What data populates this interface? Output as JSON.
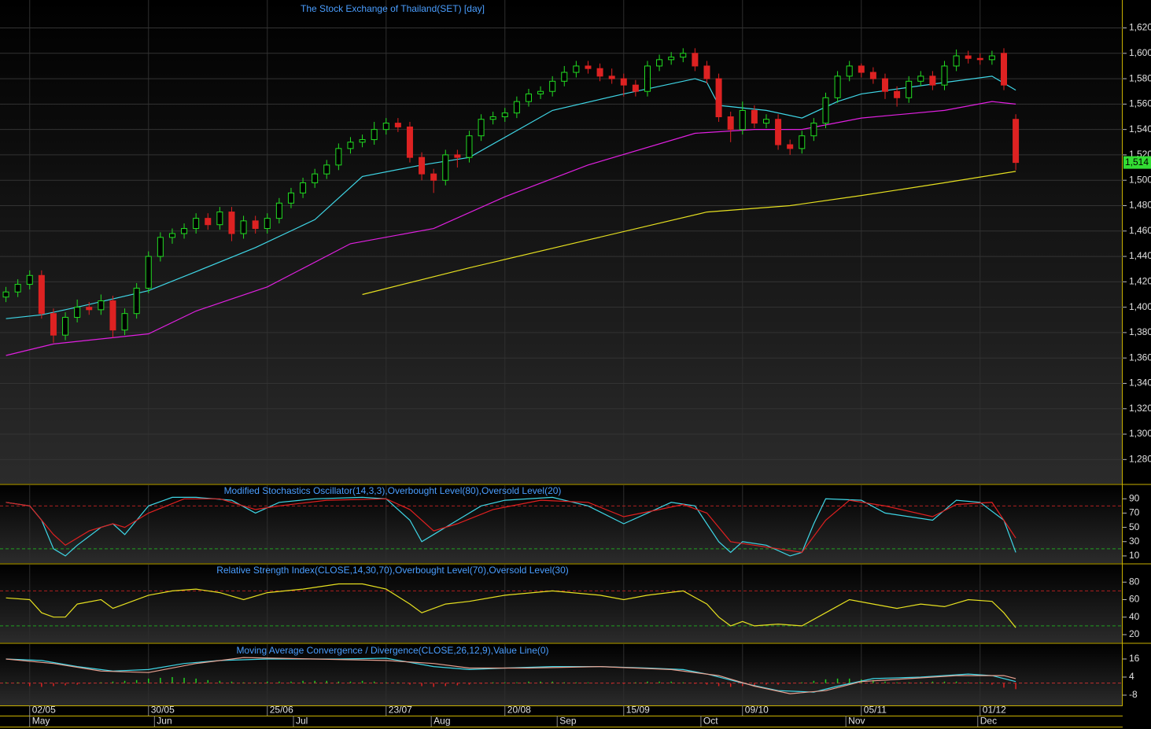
{
  "chart_data": [
    {
      "type": "candlestick",
      "title": "The Stock Exchange of Thailand(SET) [day]",
      "up_color": "#22dd22",
      "down_color": "#dd2222",
      "grid": true,
      "xlim": [
        -0.5,
        94
      ],
      "xticks": [
        {
          "value": 2,
          "label": "02/05"
        },
        {
          "value": 12,
          "label": "30/05"
        },
        {
          "value": 22,
          "label": "25/06"
        },
        {
          "value": 32,
          "label": "23/07"
        },
        {
          "value": 42,
          "label": "20/08"
        },
        {
          "value": 52,
          "label": "15/09"
        },
        {
          "value": 62,
          "label": "09/10"
        },
        {
          "value": 72,
          "label": "05/11"
        },
        {
          "value": 82,
          "label": "01/12"
        }
      ],
      "month_ticks": [
        {
          "value": 2,
          "label": "May"
        },
        {
          "value": 12.5,
          "label": "Jun"
        },
        {
          "value": 24.2,
          "label": "Jul"
        },
        {
          "value": 35.8,
          "label": "Aug"
        },
        {
          "value": 46.4,
          "label": "Sep"
        },
        {
          "value": 58.5,
          "label": "Oct"
        },
        {
          "value": 70.7,
          "label": "Nov"
        },
        {
          "value": 81.8,
          "label": "Dec"
        }
      ],
      "ylim": [
        1261,
        1642
      ],
      "yticks": [
        {
          "value": 1280,
          "label": "1,280"
        },
        {
          "value": 1300,
          "label": "1,300"
        },
        {
          "value": 1320,
          "label": "1,320"
        },
        {
          "value": 1340,
          "label": "1,340"
        },
        {
          "value": 1360,
          "label": "1,360"
        },
        {
          "value": 1380,
          "label": "1,380"
        },
        {
          "value": 1400,
          "label": "1,400"
        },
        {
          "value": 1420,
          "label": "1,420"
        },
        {
          "value": 1440,
          "label": "1,440"
        },
        {
          "value": 1460,
          "label": "1,460"
        },
        {
          "value": 1480,
          "label": "1,480"
        },
        {
          "value": 1500,
          "label": "1,500"
        },
        {
          "value": 1520,
          "label": "1,520"
        },
        {
          "value": 1540,
          "label": "1,540"
        },
        {
          "value": 1560,
          "label": "1,560"
        },
        {
          "value": 1580,
          "label": "1,580"
        },
        {
          "value": 1600,
          "label": "1,600"
        },
        {
          "value": 1620,
          "label": "1,620"
        }
      ],
      "last_price": {
        "value": 1514,
        "label": "1,514"
      },
      "open": [
        1408,
        1412,
        1418,
        1425,
        1395,
        1378,
        1392,
        1400,
        1398,
        1405,
        1382,
        1395,
        1415,
        1440,
        1455,
        1458,
        1462,
        1470,
        1465,
        1475,
        1458,
        1468,
        1462,
        1470,
        1482,
        1490,
        1498,
        1505,
        1512,
        1525,
        1530,
        1532,
        1540,
        1545,
        1542,
        1518,
        1505,
        1500,
        1520,
        1518,
        1535,
        1548,
        1550,
        1553,
        1562,
        1568,
        1570,
        1578,
        1585,
        1590,
        1588,
        1582,
        1580,
        1575,
        1570,
        1590,
        1595,
        1597,
        1600,
        1590,
        1580,
        1550,
        1540,
        1555,
        1545,
        1548,
        1528,
        1525,
        1535,
        1545,
        1565,
        1582,
        1590,
        1585,
        1580,
        1570,
        1565,
        1578,
        1582,
        1575,
        1590,
        1598,
        1596,
        1595,
        1600,
        1548
      ],
      "high": [
        1416,
        1422,
        1429,
        1429,
        1399,
        1396,
        1406,
        1404,
        1410,
        1409,
        1399,
        1419,
        1444,
        1459,
        1462,
        1466,
        1474,
        1474,
        1479,
        1479,
        1472,
        1472,
        1474,
        1486,
        1494,
        1502,
        1509,
        1516,
        1529,
        1534,
        1536,
        1546,
        1549,
        1549,
        1546,
        1522,
        1509,
        1524,
        1524,
        1539,
        1552,
        1554,
        1557,
        1566,
        1572,
        1574,
        1582,
        1590,
        1594,
        1594,
        1592,
        1588,
        1584,
        1579,
        1594,
        1599,
        1601,
        1604,
        1604,
        1594,
        1584,
        1554,
        1562,
        1559,
        1552,
        1552,
        1532,
        1539,
        1549,
        1569,
        1586,
        1594,
        1592,
        1589,
        1584,
        1574,
        1582,
        1586,
        1586,
        1594,
        1603,
        1602,
        1600,
        1602,
        1604,
        1552
      ],
      "low": [
        1404,
        1408,
        1414,
        1391,
        1372,
        1374,
        1388,
        1394,
        1394,
        1376,
        1378,
        1391,
        1411,
        1436,
        1450,
        1454,
        1458,
        1461,
        1461,
        1452,
        1454,
        1458,
        1458,
        1466,
        1478,
        1486,
        1494,
        1501,
        1508,
        1521,
        1526,
        1528,
        1536,
        1538,
        1514,
        1500,
        1490,
        1496,
        1510,
        1514,
        1531,
        1544,
        1546,
        1549,
        1558,
        1564,
        1566,
        1574,
        1581,
        1584,
        1578,
        1576,
        1566,
        1566,
        1566,
        1586,
        1591,
        1593,
        1586,
        1576,
        1546,
        1530,
        1536,
        1541,
        1541,
        1524,
        1520,
        1521,
        1531,
        1541,
        1561,
        1578,
        1581,
        1576,
        1564,
        1558,
        1561,
        1574,
        1571,
        1571,
        1586,
        1592,
        1591,
        1591,
        1571,
        1508
      ],
      "close": [
        1412,
        1418,
        1425,
        1395,
        1378,
        1392,
        1400,
        1398,
        1405,
        1382,
        1395,
        1415,
        1440,
        1455,
        1458,
        1462,
        1470,
        1465,
        1475,
        1458,
        1468,
        1462,
        1470,
        1482,
        1490,
        1498,
        1505,
        1512,
        1525,
        1530,
        1532,
        1540,
        1545,
        1542,
        1518,
        1505,
        1500,
        1520,
        1518,
        1535,
        1548,
        1550,
        1553,
        1562,
        1568,
        1570,
        1578,
        1585,
        1590,
        1588,
        1582,
        1580,
        1575,
        1570,
        1590,
        1595,
        1597,
        1600,
        1590,
        1580,
        1550,
        1540,
        1555,
        1545,
        1548,
        1528,
        1525,
        1535,
        1545,
        1565,
        1582,
        1590,
        1585,
        1580,
        1570,
        1565,
        1578,
        1582,
        1575,
        1590,
        1598,
        1596,
        1595,
        1598,
        1575,
        1514
      ],
      "lines": [
        {
          "color": "#3fd6e6",
          "x": [
            0,
            3,
            6,
            12,
            16,
            21,
            26,
            30,
            35,
            39,
            46,
            52,
            58,
            59,
            60,
            64,
            67,
            70,
            72,
            79,
            83,
            85
          ],
          "values": [
            1391,
            1394,
            1400,
            1413,
            1428,
            1447,
            1469,
            1503,
            1512,
            1518,
            1555,
            1568,
            1580,
            1577,
            1559,
            1555,
            1549,
            1562,
            1568,
            1577,
            1582,
            1571
          ]
        },
        {
          "color": "#e020e0",
          "x": [
            0,
            4,
            12,
            16,
            22,
            29,
            36,
            42,
            49,
            58,
            63,
            67,
            72,
            79,
            83,
            85
          ],
          "values": [
            1362,
            1371,
            1379,
            1397,
            1416,
            1450,
            1462,
            1487,
            1512,
            1537,
            1540,
            1540,
            1549,
            1555,
            1562,
            1560
          ]
        },
        {
          "color": "#e6e020",
          "x": [
            30,
            39,
            49,
            59,
            66,
            72,
            79,
            85
          ],
          "values": [
            1410,
            1431,
            1453,
            1475,
            1480,
            1488,
            1498,
            1507
          ]
        }
      ]
    },
    {
      "type": "line",
      "title": "Modified Stochastics Oscillator(14,3,3),Overbought Level(80),Oversold Level(20)",
      "ylim": [
        0,
        109
      ],
      "yticks": [
        10,
        30,
        50,
        70,
        90
      ],
      "levels": [
        {
          "value": 80,
          "color": "#b02020"
        },
        {
          "value": 20,
          "color": "#20a020"
        }
      ],
      "series": [
        {
          "color": "#3fd6e6",
          "x": [
            0,
            2,
            3,
            4,
            5,
            6,
            8,
            9,
            10,
            12,
            14,
            16,
            19,
            21,
            23,
            26,
            30,
            32,
            34,
            35,
            36,
            38,
            40,
            42,
            46,
            49,
            52,
            54,
            56,
            58,
            60,
            61,
            62,
            64,
            66,
            67,
            68,
            69,
            72,
            74,
            78,
            80,
            82,
            84,
            85
          ],
          "values": [
            85,
            80,
            60,
            20,
            10,
            25,
            50,
            55,
            40,
            80,
            92,
            92,
            88,
            70,
            85,
            90,
            92,
            90,
            60,
            30,
            40,
            60,
            80,
            88,
            92,
            80,
            55,
            70,
            85,
            80,
            30,
            15,
            30,
            25,
            10,
            15,
            55,
            90,
            88,
            70,
            60,
            88,
            85,
            60,
            15
          ]
        },
        {
          "color": "#e02020",
          "x": [
            0,
            2,
            4,
            5,
            7,
            9,
            10,
            12,
            15,
            18,
            21,
            23,
            27,
            32,
            34,
            36,
            38,
            41,
            45,
            49,
            52,
            55,
            57,
            59,
            61,
            63,
            65,
            67,
            69,
            71,
            74,
            78,
            80,
            83,
            85
          ],
          "values": [
            85,
            80,
            40,
            25,
            45,
            55,
            50,
            70,
            90,
            90,
            75,
            80,
            88,
            90,
            75,
            45,
            55,
            75,
            88,
            85,
            65,
            75,
            82,
            70,
            30,
            25,
            20,
            15,
            60,
            88,
            80,
            65,
            82,
            85,
            35
          ]
        }
      ]
    },
    {
      "type": "line",
      "title": "Relative Strength Index(CLOSE,14,30,70),Overbought Level(70),Oversold Level(30)",
      "ylim": [
        11,
        100
      ],
      "yticks": [
        20,
        40,
        60,
        80
      ],
      "levels": [
        {
          "value": 70,
          "color": "#b02020"
        },
        {
          "value": 30,
          "color": "#20a020"
        }
      ],
      "series": [
        {
          "color": "#e6e020",
          "x": [
            0,
            2,
            3,
            4,
            5,
            6,
            8,
            9,
            10,
            12,
            14,
            16,
            18,
            20,
            22,
            25,
            28,
            30,
            32,
            34,
            35,
            37,
            39,
            42,
            46,
            50,
            52,
            54,
            57,
            59,
            60,
            61,
            62,
            63,
            65,
            67,
            69,
            71,
            73,
            75,
            77,
            79,
            81,
            83,
            84,
            85
          ],
          "values": [
            62,
            60,
            45,
            40,
            40,
            55,
            60,
            50,
            55,
            65,
            70,
            72,
            68,
            60,
            68,
            72,
            78,
            78,
            72,
            55,
            45,
            55,
            58,
            65,
            70,
            65,
            60,
            65,
            70,
            55,
            40,
            30,
            35,
            30,
            32,
            30,
            45,
            60,
            55,
            50,
            55,
            52,
            60,
            58,
            45,
            28
          ]
        }
      ]
    },
    {
      "type": "macd",
      "title": "Moving Average Convergence / Divergence(CLOSE,26,12,9),Value Line(0)",
      "ylim": [
        -14.8,
        25.9
      ],
      "yticks": [
        -8,
        4,
        16
      ],
      "levels": [
        {
          "value": 0,
          "color": "#c03030"
        }
      ],
      "up_color": "#22cc22",
      "down_color": "#dd2222",
      "histogram": [
        0.5,
        0.5,
        -2,
        -2.5,
        -2,
        -1.5,
        -1,
        -0.5,
        0.5,
        1,
        1.5,
        2,
        3,
        3.5,
        4,
        3.5,
        3,
        2,
        1.5,
        1,
        0.5,
        0.5,
        1,
        1,
        1,
        1.5,
        1.5,
        1.5,
        1,
        1,
        1.5,
        1,
        0.5,
        0.5,
        -1,
        -2,
        -2.5,
        -2,
        -1.5,
        -1,
        -0.5,
        0.5,
        0.5,
        0.5,
        1,
        1,
        1,
        0.5,
        0.5,
        0.5,
        0,
        -0.5,
        -0.5,
        0.5,
        1,
        1,
        1,
        0.5,
        -0.5,
        -1,
        -2,
        -2.5,
        -2,
        -1.5,
        -1,
        -1,
        -0.5,
        0.5,
        1.5,
        2.5,
        3,
        3,
        2.5,
        2,
        1,
        0.5,
        0.5,
        0.5,
        1,
        1,
        1,
        0.5,
        0.5,
        -1,
        -3,
        -4
      ],
      "series": [
        {
          "color": "#3fd6e6",
          "x": [
            0,
            3,
            6,
            9,
            12,
            15,
            18,
            22,
            28,
            32,
            36,
            39,
            42,
            46,
            50,
            54,
            57,
            59,
            62,
            65,
            68,
            70,
            73,
            77,
            81,
            83,
            85
          ],
          "values": [
            16,
            15,
            11,
            8,
            9,
            13,
            15,
            16,
            16,
            16.5,
            11,
            9,
            10,
            11,
            11,
            10,
            9,
            6,
            0,
            -5,
            -6,
            -2,
            3,
            4,
            6,
            5,
            1
          ]
        },
        {
          "color": "#e8a090",
          "x": [
            0,
            4,
            8,
            12,
            16,
            20,
            26,
            32,
            36,
            39,
            44,
            50,
            56,
            60,
            63,
            66,
            69,
            72,
            76,
            80,
            84,
            85
          ],
          "values": [
            16,
            13,
            8,
            7,
            13,
            17,
            16,
            15,
            13,
            10,
            10,
            11,
            9,
            5,
            -2,
            -7,
            -5,
            1,
            3,
            5,
            5,
            3
          ]
        }
      ]
    }
  ]
}
